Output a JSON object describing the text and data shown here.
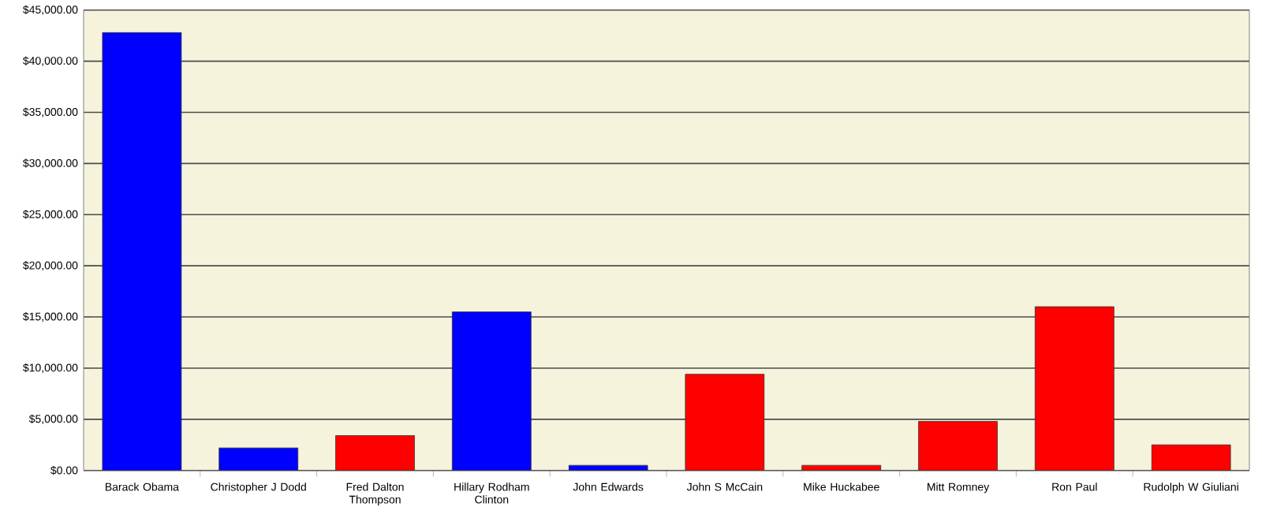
{
  "chart_data": {
    "type": "bar",
    "categories": [
      "Barack Obama",
      "Christopher J Dodd",
      "Fred Dalton Thompson",
      "Hillary Rodham Clinton",
      "John Edwards",
      "John S McCain",
      "Mike Huckabee",
      "Mitt Romney",
      "Ron Paul",
      "Rudolph W Giuliani"
    ],
    "values": [
      42800,
      2200,
      3400,
      15500,
      500,
      9400,
      500,
      4800,
      16000,
      2500
    ],
    "colors": [
      "#0000ff",
      "#0000ff",
      "#ff0000",
      "#0000ff",
      "#0000ff",
      "#ff0000",
      "#ff0000",
      "#ff0000",
      "#ff0000",
      "#ff0000"
    ],
    "ylim": [
      0,
      45000
    ],
    "yticks": [
      {
        "value": 0,
        "label": "$0.00"
      },
      {
        "value": 5000,
        "label": "$5,000.00"
      },
      {
        "value": 10000,
        "label": "$10,000.00"
      },
      {
        "value": 15000,
        "label": "$15,000.00"
      },
      {
        "value": 20000,
        "label": "$20,000.00"
      },
      {
        "value": 25000,
        "label": "$25,000.00"
      },
      {
        "value": 30000,
        "label": "$30,000.00"
      },
      {
        "value": 35000,
        "label": "$35,000.00"
      },
      {
        "value": 40000,
        "label": "$40,000.00"
      },
      {
        "value": 45000,
        "label": "$45,000.00"
      }
    ],
    "grid": "y"
  }
}
